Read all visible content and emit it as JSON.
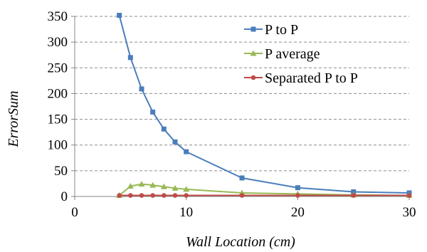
{
  "chart_data": {
    "type": "line",
    "title": "",
    "xlabel": "Wall Location (cm)",
    "ylabel": "ErrorSum",
    "xlim": [
      0,
      30
    ],
    "ylim": [
      0,
      350
    ],
    "xticks": [
      0,
      10,
      20,
      30
    ],
    "yticks": [
      0,
      50,
      100,
      150,
      200,
      250,
      300,
      350
    ],
    "grid": "horizontal dashed",
    "legend_position": "top-right",
    "series": [
      {
        "name": "P to P",
        "color": "#4a7ebb",
        "marker": "square",
        "x": [
          4,
          5,
          6,
          7,
          8,
          9,
          10,
          15,
          20,
          25,
          30
        ],
        "values": [
          352,
          270,
          209,
          164,
          131,
          106,
          87,
          36,
          17,
          9,
          7
        ]
      },
      {
        "name": "P average",
        "color": "#98b954",
        "marker": "triangle",
        "x": [
          4,
          5,
          6,
          7,
          8,
          9,
          10,
          15,
          20,
          25,
          30
        ],
        "values": [
          2,
          20,
          24,
          22,
          19,
          16,
          14,
          7,
          5,
          3,
          2
        ]
      },
      {
        "name": "Separated P to P",
        "color": "#be4b48",
        "marker": "circle",
        "x": [
          4,
          5,
          6,
          7,
          8,
          9,
          10,
          15,
          20,
          25,
          30
        ],
        "values": [
          2,
          2,
          2,
          2,
          2,
          2,
          2,
          2,
          2,
          2,
          2
        ]
      }
    ]
  }
}
